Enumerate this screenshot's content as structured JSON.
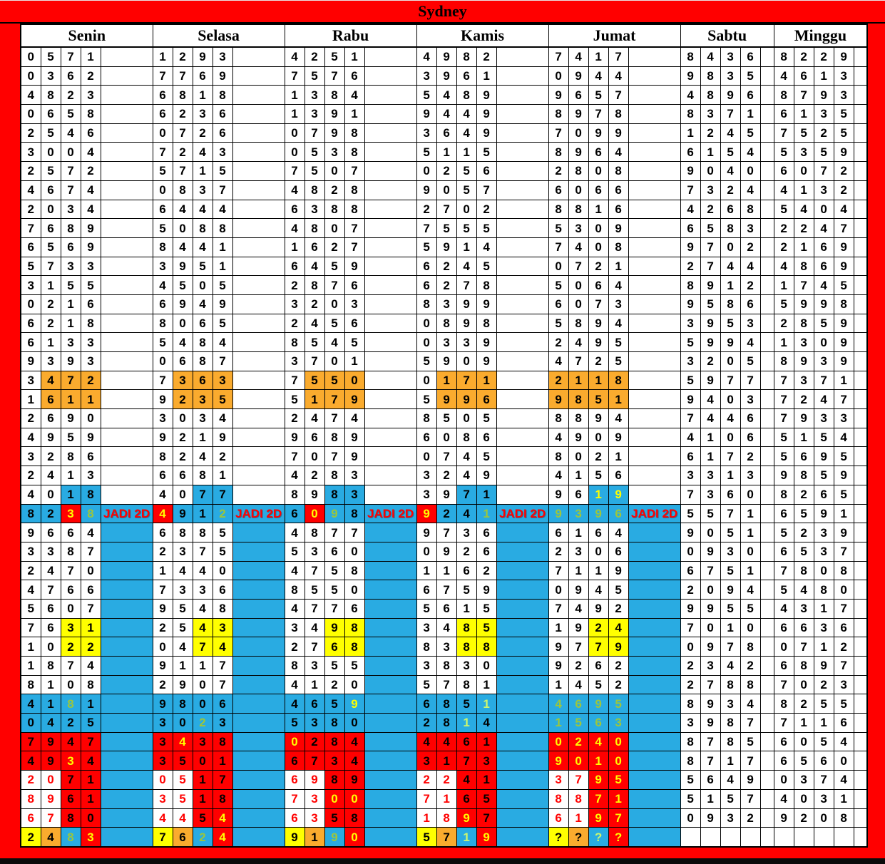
{
  "title": "Sydney",
  "labels": {
    "jadi_2d": "JADI 2D"
  },
  "colors": {
    "frame_red": "#FF0000",
    "cell_white": "#FFFFFF",
    "cell_cyan": "#29ABE2",
    "cell_red": "#FF0000",
    "cell_yellow": "#FFFF00",
    "cell_orange": "#FAAB2E",
    "text_black": "#000000",
    "text_red": "#FF0000",
    "text_yellow": "#FFFF00",
    "text_green": "#9CC63C",
    "text_lightgreen": "#CCF66E"
  },
  "jadi_row_index": 24,
  "days": [
    {
      "name": "Senin",
      "has_jadi_column": true,
      "rows": [
        "0571",
        "0362",
        "4823",
        "0658",
        "2546",
        "3004",
        "2572",
        "4674",
        "2034",
        "7689",
        "6569",
        "5733",
        "3155",
        "0216",
        "6218",
        "6133",
        "9393",
        [
          "3472",
          "wooo",
          "kkkk"
        ],
        [
          "1611",
          "wooo",
          "kkkk"
        ],
        "2690",
        "4959",
        "3286",
        "2413",
        [
          "4018",
          "wwcc",
          "kkkk"
        ],
        [
          "8238",
          "ccrc",
          "kkyg"
        ],
        "9664",
        "3387",
        "2470",
        "4766",
        "5607",
        [
          "7631",
          "wwyy",
          "kkkk"
        ],
        [
          "1022",
          "wwyy",
          "kkkk"
        ],
        "1874",
        "8108",
        [
          "4181",
          "cccc",
          "kkgk"
        ],
        [
          "0425",
          "cccc",
          "kkkk"
        ],
        [
          "7947",
          "rrrr",
          "kkkk"
        ],
        [
          "4934",
          "rrrr",
          "kkyk"
        ],
        [
          "2071",
          "wwrr",
          "rrkk"
        ],
        [
          "8961",
          "wwrr",
          "rrkk"
        ],
        [
          "6780",
          "wwrr",
          "rrkk"
        ],
        [
          "2483",
          "yocr",
          "kkgy"
        ]
      ]
    },
    {
      "name": "Selasa",
      "has_jadi_column": true,
      "rows": [
        "1293",
        "7769",
        "6818",
        "6236",
        "0726",
        "7243",
        "5715",
        "0837",
        "6444",
        "5088",
        "8441",
        "3951",
        "4505",
        "6949",
        "8065",
        "5484",
        "0687",
        [
          "7363",
          "wooo",
          "kkkk"
        ],
        [
          "9235",
          "wooo",
          "kkkk"
        ],
        "3034",
        "9219",
        "8242",
        "6681",
        [
          "4077",
          "wwcc",
          "kkkk"
        ],
        [
          "4912",
          "rccc",
          "ykkg"
        ],
        "6885",
        "2375",
        "1440",
        "7336",
        "9548",
        [
          "2543",
          "wwyy",
          "kkkk"
        ],
        [
          "0474",
          "wwyy",
          "kkkk"
        ],
        "9117",
        "2907",
        [
          "9806",
          "cccc",
          "kkkk"
        ],
        [
          "3023",
          "cccc",
          "kkgk"
        ],
        [
          "3438",
          "rrrr",
          "kykk"
        ],
        [
          "3501",
          "rrrr",
          "kkkk"
        ],
        [
          "0517",
          "wwrr",
          "rrkk"
        ],
        [
          "3518",
          "wwrr",
          "rrkk"
        ],
        [
          "4454",
          "wwrr",
          "rrky"
        ],
        [
          "7624",
          "yocr",
          "kkgy"
        ]
      ]
    },
    {
      "name": "Rabu",
      "has_jadi_column": true,
      "rows": [
        "4251",
        "7576",
        "1384",
        "1391",
        "0798",
        "0538",
        "7507",
        "4828",
        "6388",
        "4807",
        "1627",
        "6459",
        "2876",
        "3203",
        "2456",
        "8545",
        "3701",
        [
          "7550",
          "wooo",
          "kkkk"
        ],
        [
          "5179",
          "wooo",
          "kkkk"
        ],
        "2474",
        "9689",
        "7079",
        "4283",
        [
          "8983",
          "wwcc",
          "kkkk"
        ],
        [
          "6098",
          "crcc",
          "kygk"
        ],
        "4877",
        "5360",
        "4758",
        "8550",
        "4776",
        [
          "3498",
          "wwyy",
          "kkkk"
        ],
        [
          "2768",
          "wwyy",
          "kkkk"
        ],
        "8355",
        "4120",
        [
          "4659",
          "cccc",
          "kkky"
        ],
        [
          "5380",
          "cccc",
          "kkkk"
        ],
        [
          "0284",
          "rrrr",
          "ykkk"
        ],
        [
          "6734",
          "rrrr",
          "kkkk"
        ],
        [
          "6989",
          "wwrr",
          "rrkk"
        ],
        [
          "7300",
          "wwrr",
          "rryy"
        ],
        [
          "6358",
          "wwrr",
          "rrkk"
        ],
        [
          "9190",
          "yocr",
          "kkgy"
        ]
      ]
    },
    {
      "name": "Kamis",
      "has_jadi_column": true,
      "rows": [
        "4982",
        "3961",
        "5489",
        "9449",
        "3649",
        "5115",
        "0256",
        "9057",
        "2702",
        "7555",
        "5914",
        "6245",
        "6278",
        "8399",
        "0898",
        "0339",
        "5909",
        [
          "0171",
          "wooo",
          "kkkk"
        ],
        [
          "5996",
          "wooo",
          "kkkk"
        ],
        "8505",
        "6086",
        "0745",
        "3249",
        [
          "3971",
          "wwcc",
          "kkkk"
        ],
        [
          "9241",
          "rccc",
          "ykkg"
        ],
        "9736",
        "0926",
        "1162",
        "6759",
        "5615",
        [
          "3485",
          "wwyy",
          "kkkk"
        ],
        [
          "8388",
          "wwyy",
          "kkkk"
        ],
        "3830",
        "5781",
        [
          "6851",
          "cccc",
          "kkkl"
        ],
        [
          "2814",
          "cccc",
          "kklk"
        ],
        [
          "4461",
          "rrrr",
          "kkkk"
        ],
        [
          "3173",
          "rrrr",
          "kkkk"
        ],
        [
          "2241",
          "wwrr",
          "rrkk"
        ],
        [
          "7165",
          "wwrr",
          "rrkk"
        ],
        [
          "1897",
          "wwrr",
          "rryk"
        ],
        [
          "5719",
          "yocr",
          "kkly"
        ]
      ]
    },
    {
      "name": "Jumat",
      "has_jadi_column": true,
      "rows": [
        "7417",
        "0944",
        "9657",
        "8978",
        "7099",
        "8964",
        "2808",
        "6066",
        "8816",
        "5309",
        "7408",
        "0721",
        "5064",
        "6073",
        "5894",
        "2495",
        "4725",
        [
          "2118",
          "oooo",
          "kkkk"
        ],
        [
          "9851",
          "oooo",
          "kkkk"
        ],
        "8894",
        "4909",
        "8021",
        "4156",
        [
          "9619",
          "wwcc",
          "kkyy"
        ],
        [
          "9396",
          "cccc",
          "gggg"
        ],
        "6164",
        "2306",
        "7119",
        "0945",
        "7492",
        [
          "1924",
          "wwyy",
          "kkkk"
        ],
        [
          "9779",
          "wwyy",
          "kkkk"
        ],
        "9262",
        "1452",
        [
          "4695",
          "cccc",
          "gggg"
        ],
        [
          "1563",
          "cccc",
          "gggg"
        ],
        [
          "0240",
          "rrrr",
          "yyyy"
        ],
        [
          "9010",
          "rrrr",
          "yyyy"
        ],
        [
          "3795",
          "wwrr",
          "rryy"
        ],
        [
          "8871",
          "wwrr",
          "rryy"
        ],
        [
          "6197",
          "wwrr",
          "rryy"
        ],
        [
          "????",
          "yocr",
          "kkly"
        ]
      ]
    },
    {
      "name": "Sabtu",
      "has_jadi_column": false,
      "rows": [
        "8436",
        "9835",
        "4896",
        "8371",
        "1245",
        "6154",
        "9040",
        "7324",
        "4268",
        "6583",
        "9702",
        "2744",
        "8912",
        "9586",
        "3953",
        "5994",
        "3205",
        "5977",
        "9403",
        "7446",
        "4106",
        "6172",
        "3313",
        "7360",
        "5571",
        "9051",
        "0930",
        "6751",
        "2094",
        "9955",
        "7010",
        "0978",
        "2342",
        "2788",
        "8934",
        "3987",
        "8785",
        "8717",
        "5649",
        "5157",
        "0932",
        ""
      ]
    },
    {
      "name": "Minggu",
      "has_jadi_column": false,
      "rows": [
        "8229",
        "4613",
        "8793",
        "6135",
        "7525",
        "5359",
        "6072",
        "4132",
        "5404",
        "2247",
        "2169",
        "4869",
        "1745",
        "5998",
        "2859",
        "1309",
        "8939",
        "7371",
        "7247",
        "7933",
        "5154",
        "5695",
        "9859",
        "8265",
        "6591",
        "5239",
        "6537",
        "7808",
        "5480",
        "4317",
        "6636",
        "0712",
        "6897",
        "7023",
        "8255",
        "7116",
        "6054",
        "6560",
        "0374",
        "4031",
        "9208",
        ""
      ]
    }
  ]
}
